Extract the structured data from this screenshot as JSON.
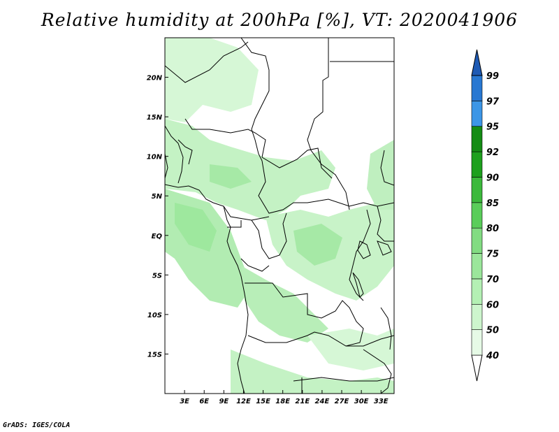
{
  "title": "Relative humidity at 200hPa [%], VT: 2020041906",
  "credit": "GrADS: IGES/COLA",
  "map": {
    "lon_range": [
      0,
      35
    ],
    "lat_range": [
      -20,
      25
    ],
    "lat_ticks": [
      {
        "value": 20,
        "label": "20N"
      },
      {
        "value": 15,
        "label": "15N"
      },
      {
        "value": 10,
        "label": "10N"
      },
      {
        "value": 5,
        "label": "5N"
      },
      {
        "value": 0,
        "label": "EQ"
      },
      {
        "value": -5,
        "label": "5S"
      },
      {
        "value": -10,
        "label": "10S"
      },
      {
        "value": -15,
        "label": "15S"
      }
    ],
    "lon_ticks": [
      {
        "value": 3,
        "label": "3E"
      },
      {
        "value": 6,
        "label": "6E"
      },
      {
        "value": 9,
        "label": "9E"
      },
      {
        "value": 12,
        "label": "12E"
      },
      {
        "value": 15,
        "label": "15E"
      },
      {
        "value": 18,
        "label": "18E"
      },
      {
        "value": 21,
        "label": "21E"
      },
      {
        "value": 24,
        "label": "24E"
      },
      {
        "value": 27,
        "label": "27E"
      },
      {
        "value": 30,
        "label": "30E"
      },
      {
        "value": 33,
        "label": "33E"
      }
    ]
  },
  "colorbar": {
    "levels": [
      "40",
      "50",
      "60",
      "70",
      "75",
      "80",
      "85",
      "90",
      "92",
      "95",
      "97",
      "99"
    ],
    "colors": [
      "#e6fae6",
      "#cdf5cd",
      "#b4f0b4",
      "#9be69b",
      "#82dc82",
      "#5acd5a",
      "#3cb93c",
      "#1ea01e",
      "#148c14",
      "#3c96e6",
      "#2878d2",
      "#1e5ab4"
    ]
  }
}
